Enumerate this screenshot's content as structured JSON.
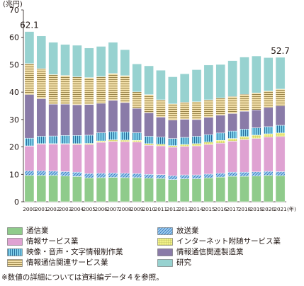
{
  "chart_data": {
    "type": "bar",
    "stacked": true,
    "title": "",
    "ylabel": "(兆円)",
    "xunit": "(年)",
    "ylim": [
      0,
      70
    ],
    "yticks": [
      0,
      10,
      20,
      30,
      40,
      50,
      60,
      70
    ],
    "grid": false,
    "legend_position": "bottom",
    "categories": [
      "2000",
      "2001",
      "2002",
      "2003",
      "2004",
      "2005",
      "2006",
      "2007",
      "2008",
      "2009",
      "2010",
      "2011",
      "2012",
      "2013",
      "2014",
      "2015",
      "2016",
      "2017",
      "2018",
      "2019",
      "2020",
      "2021"
    ],
    "series": [
      {
        "name": "通信業",
        "color": "#8fcb8b",
        "pattern": "solid",
        "values": [
          9.6,
          9.6,
          9.6,
          9.4,
          9.2,
          8.7,
          8.8,
          8.9,
          8.8,
          8.8,
          8.6,
          8.5,
          8.1,
          8.4,
          8.4,
          8.7,
          9.0,
          9.3,
          9.3,
          9.4,
          9.6,
          9.5
        ]
      },
      {
        "name": "放送業",
        "color": "#a7d1ef",
        "pattern": "diagonal",
        "values": [
          1.7,
          1.7,
          1.6,
          1.6,
          1.6,
          1.6,
          1.6,
          1.6,
          1.6,
          1.5,
          1.4,
          1.4,
          1.4,
          1.4,
          1.4,
          1.4,
          1.4,
          1.5,
          1.5,
          1.5,
          1.5,
          1.5
        ]
      },
      {
        "name": "情報サービス業",
        "color": "#dfa2d2",
        "pattern": "solid",
        "values": [
          9.0,
          9.7,
          9.8,
          10.0,
          10.1,
          10.6,
          11.3,
          11.5,
          11.5,
          11.5,
          10.6,
          10.5,
          10.4,
          10.4,
          10.6,
          10.8,
          11.0,
          11.3,
          11.9,
          12.2,
          12.5,
          12.8
        ]
      },
      {
        "name": "インターネット附随サービス業",
        "color": "#f2f28a",
        "pattern": "grid",
        "values": [
          0.1,
          0.2,
          0.2,
          0.2,
          0.3,
          0.4,
          0.5,
          0.6,
          0.6,
          0.6,
          0.6,
          0.6,
          0.6,
          0.7,
          0.8,
          0.9,
          1.0,
          1.0,
          1.1,
          1.2,
          1.2,
          1.3
        ]
      },
      {
        "name": "映像・音声・文字情報制作業",
        "color": "#7fd0ea",
        "pattern": "stripe",
        "values": [
          2.8,
          2.7,
          2.8,
          3.0,
          3.0,
          3.0,
          3.0,
          3.0,
          3.0,
          2.8,
          2.7,
          2.6,
          2.6,
          2.6,
          2.7,
          2.7,
          2.7,
          2.7,
          2.7,
          2.7,
          2.6,
          2.8
        ]
      },
      {
        "name": "情報通信関連製造業",
        "color": "#8a7ba8",
        "pattern": "solid",
        "values": [
          15.9,
          13.7,
          11.6,
          11.4,
          11.2,
          11.2,
          10.7,
          11.4,
          10.7,
          8.9,
          8.6,
          7.3,
          6.7,
          6.6,
          6.1,
          6.3,
          6.5,
          6.4,
          6.5,
          6.5,
          7.0,
          7.1
        ]
      },
      {
        "name": "情報通信関連サービス業",
        "color": "#f2dfa9",
        "pattern": "hlines",
        "values": [
          11.3,
          11.0,
          10.8,
          10.5,
          10.2,
          9.8,
          9.8,
          9.8,
          9.8,
          6.0,
          6.6,
          6.3,
          5.9,
          6.2,
          6.5,
          6.4,
          6.3,
          6.2,
          6.2,
          6.2,
          6.0,
          6.1
        ]
      },
      {
        "name": "研究",
        "color": "#97d2d0",
        "pattern": "solid",
        "values": [
          11.7,
          11.9,
          11.8,
          11.3,
          11.5,
          10.8,
          11.0,
          11.4,
          9.5,
          10.2,
          10.5,
          10.8,
          9.9,
          10.4,
          11.7,
          12.7,
          12.2,
          13.1,
          13.6,
          13.5,
          12.2,
          11.6
        ]
      }
    ],
    "annotations": [
      {
        "x": "2000",
        "text": "62.1"
      },
      {
        "x": "2021",
        "text": "52.7"
      }
    ]
  },
  "legend": [
    {
      "label": "通信業"
    },
    {
      "label": "放送業"
    },
    {
      "label": "情報サービス業"
    },
    {
      "label": "インターネット附随サービス業"
    },
    {
      "label": "映像・音声・文字情報制作業"
    },
    {
      "label": "情報通信関連製造業"
    },
    {
      "label": "情報通信関連サービス業"
    },
    {
      "label": "研究"
    }
  ],
  "note": "※数値の詳細については資料編データ４を参照。"
}
